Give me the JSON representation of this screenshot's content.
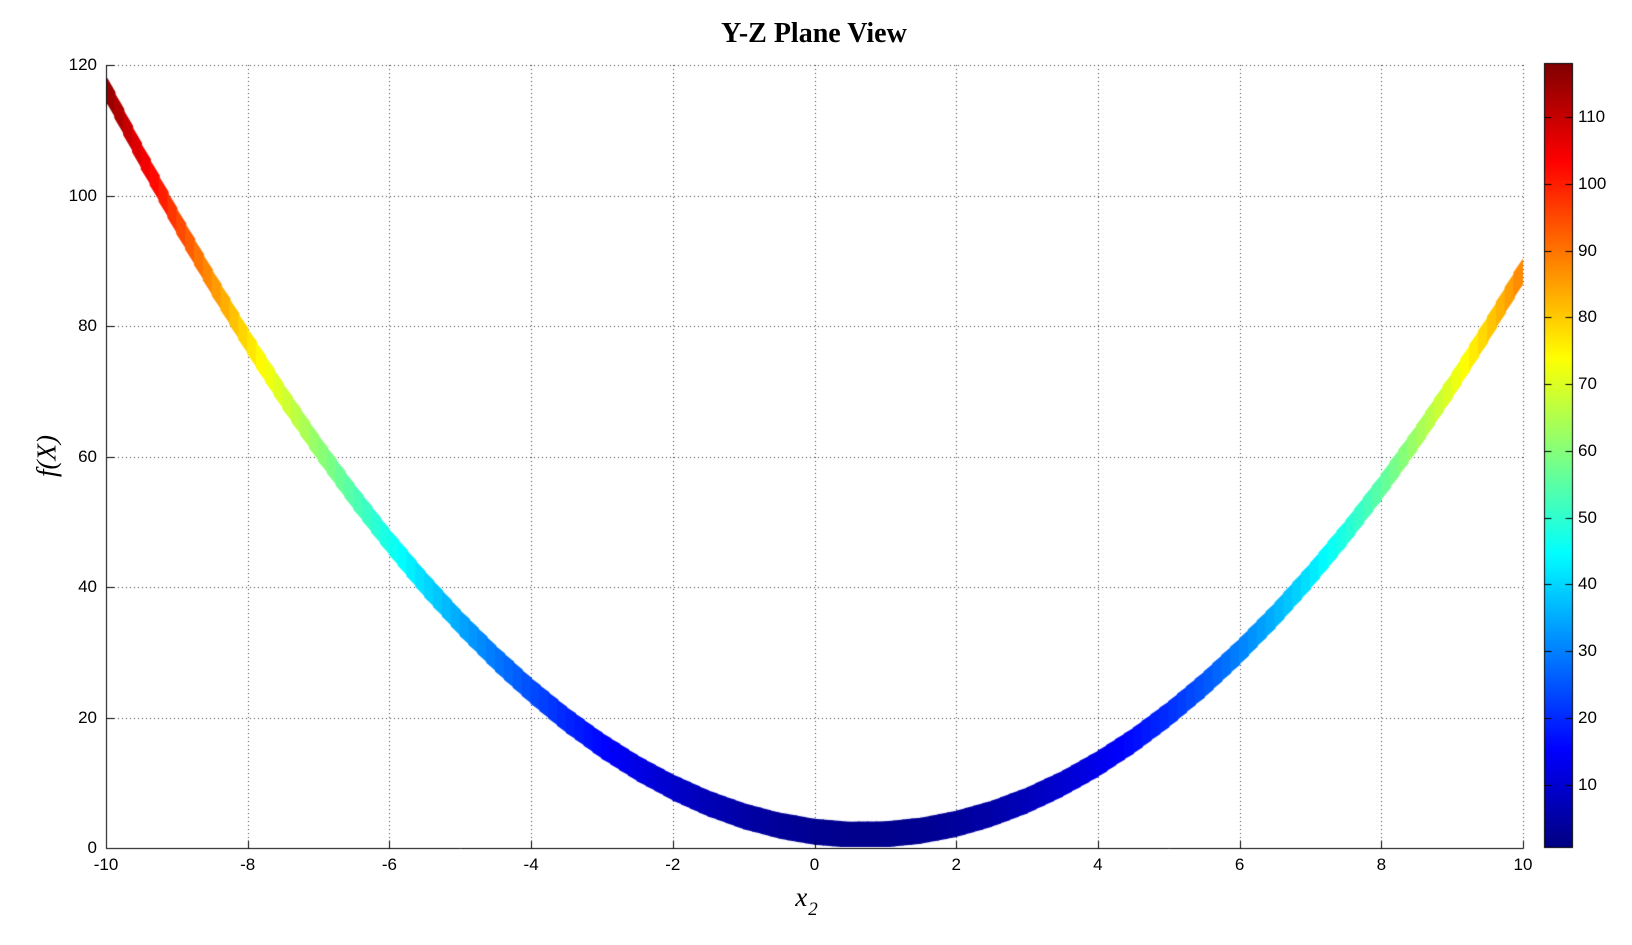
{
  "title": "Y-Z Plane View",
  "axes": {
    "x": {
      "label_main": "x",
      "label_sub": "2",
      "ticks": [
        -10,
        -8,
        -6,
        -4,
        -2,
        0,
        2,
        4,
        6,
        8,
        10
      ],
      "lim": [
        -10,
        10
      ]
    },
    "y": {
      "label": "f(X)",
      "ticks": [
        0,
        20,
        40,
        60,
        80,
        100,
        120
      ],
      "lim": [
        0,
        120
      ]
    }
  },
  "colorbar": {
    "ticks": [
      10,
      20,
      30,
      40,
      50,
      60,
      70,
      80,
      90,
      100,
      110
    ],
    "clim": [
      0.5,
      118.1
    ],
    "colormap": "jet"
  },
  "chart_data": {
    "type": "line",
    "title": "Y-Z Plane View",
    "xlabel": "x_2",
    "ylabel": "f(X)",
    "xlim": [
      -10,
      10
    ],
    "ylim": [
      0,
      120
    ],
    "grid": "dotted",
    "colormap": "jet",
    "clim": [
      0.5,
      118.1
    ],
    "band_half_width": 2.0,
    "curve_formula": "f(x2) = (x2 - 0.7)^2 + 2",
    "x": [
      -10,
      -9.5,
      -9,
      -8.5,
      -8,
      -7.5,
      -7,
      -6.5,
      -6,
      -5.5,
      -5,
      -4.5,
      -4,
      -3.5,
      -3,
      -2.5,
      -2,
      -1.5,
      -1,
      -0.5,
      0,
      0.5,
      1,
      1.5,
      2,
      2.5,
      3,
      3.5,
      4,
      4.5,
      5,
      5.5,
      6,
      6.5,
      7,
      7.5,
      8,
      8.5,
      9,
      9.5,
      10
    ],
    "y": [
      116.49,
      106.04,
      96.09,
      86.64,
      77.69,
      69.24,
      61.29,
      53.84,
      46.89,
      40.44,
      34.49,
      29.04,
      24.09,
      19.64,
      15.69,
      12.24,
      9.29,
      6.84,
      4.89,
      3.44,
      2.49,
      2.04,
      2.09,
      2.64,
      3.69,
      5.24,
      7.29,
      9.84,
      12.89,
      16.44,
      20.49,
      25.04,
      30.09,
      35.64,
      41.69,
      48.24,
      55.29,
      62.84,
      70.89,
      79.44,
      88.49
    ]
  },
  "colors": {
    "background": "#ffffff",
    "axis": "#000000",
    "grid": "#000000",
    "text": "#000000",
    "jet_anchors": [
      "#000080",
      "#0000ff",
      "#00ffff",
      "#ffff00",
      "#ff0000",
      "#800000"
    ]
  }
}
